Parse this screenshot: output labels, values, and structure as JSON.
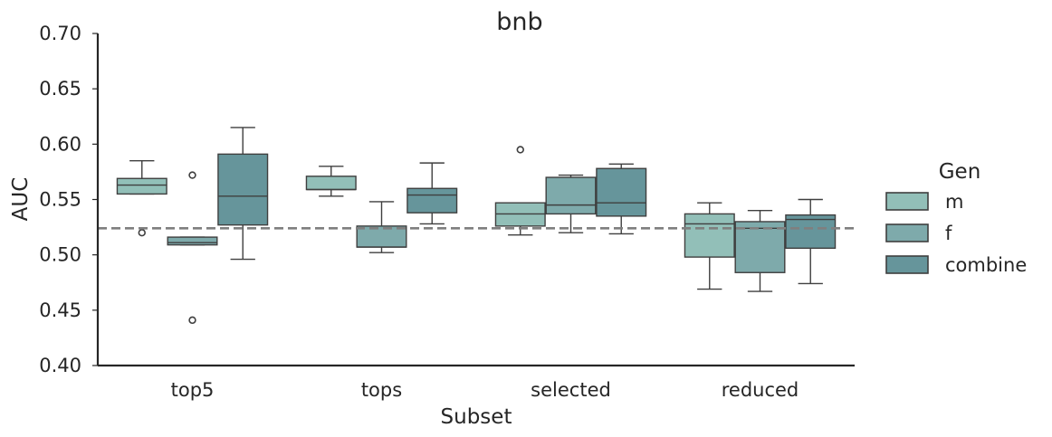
{
  "chart_data": {
    "type": "box",
    "title": "bnb",
    "xlabel": "Subset",
    "ylabel": "AUC",
    "ylim": [
      0.4,
      0.7
    ],
    "yticks": [
      "0.40",
      "0.45",
      "0.50",
      "0.55",
      "0.60",
      "0.65",
      "0.70"
    ],
    "categories": [
      "top5",
      "tops",
      "selected",
      "reduced"
    ],
    "grid": false,
    "reference_line": 0.524,
    "legend": {
      "title": "Gen",
      "position": "right",
      "entries": [
        "m",
        "f",
        "combine"
      ]
    },
    "series": [
      {
        "name": "m",
        "color": "#92bfb8",
        "boxes": [
          {
            "whislo": 0.555,
            "q1": 0.555,
            "med": 0.563,
            "q3": 0.569,
            "whishi": 0.585,
            "fliers": [
              0.52
            ]
          },
          {
            "whislo": 0.553,
            "q1": 0.559,
            "med": 0.559,
            "q3": 0.571,
            "whishi": 0.58,
            "fliers": []
          },
          {
            "whislo": 0.518,
            "q1": 0.526,
            "med": 0.537,
            "q3": 0.547,
            "whishi": 0.547,
            "fliers": [
              0.595
            ]
          },
          {
            "whislo": 0.469,
            "q1": 0.498,
            "med": 0.528,
            "q3": 0.537,
            "whishi": 0.547,
            "fliers": []
          }
        ]
      },
      {
        "name": "f",
        "color": "#7eaaab",
        "boxes": [
          {
            "whislo": 0.509,
            "q1": 0.509,
            "med": 0.511,
            "q3": 0.516,
            "whishi": 0.516,
            "fliers": [
              0.572,
              0.441
            ]
          },
          {
            "whislo": 0.502,
            "q1": 0.507,
            "med": 0.507,
            "q3": 0.526,
            "whishi": 0.548,
            "fliers": []
          },
          {
            "whislo": 0.52,
            "q1": 0.537,
            "med": 0.545,
            "q3": 0.57,
            "whishi": 0.572,
            "fliers": []
          },
          {
            "whislo": 0.467,
            "q1": 0.484,
            "med": 0.524,
            "q3": 0.53,
            "whishi": 0.54,
            "fliers": []
          }
        ]
      },
      {
        "name": "combine",
        "color": "#66959b",
        "boxes": [
          {
            "whislo": 0.496,
            "q1": 0.527,
            "med": 0.553,
            "q3": 0.591,
            "whishi": 0.615,
            "fliers": []
          },
          {
            "whislo": 0.528,
            "q1": 0.538,
            "med": 0.554,
            "q3": 0.56,
            "whishi": 0.583,
            "fliers": []
          },
          {
            "whislo": 0.519,
            "q1": 0.535,
            "med": 0.547,
            "q3": 0.578,
            "whishi": 0.582,
            "fliers": []
          },
          {
            "whislo": 0.474,
            "q1": 0.506,
            "med": 0.532,
            "q3": 0.536,
            "whishi": 0.55,
            "fliers": []
          }
        ]
      }
    ]
  }
}
